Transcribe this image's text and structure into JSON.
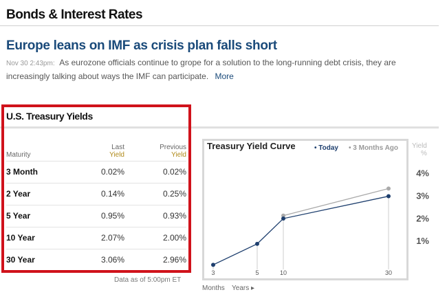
{
  "section": {
    "title": "Bonds & Interest Rates"
  },
  "article": {
    "headline": "Europe leans on IMF as crisis plan falls short",
    "timestamp": "Nov 30 2:43pm:",
    "summary": "As eurozone officials continue to grope for a solution to the long-running debt crisis, they are increasingly talking about ways the IMF can participate.",
    "more_label": "More"
  },
  "yields": {
    "title": "U.S. Treasury Yields",
    "headers": {
      "maturity": "Maturity",
      "last_line1": "Last",
      "last_line2": "Yield",
      "prev_line1": "Previous",
      "prev_line2": "Yield"
    },
    "rows": [
      {
        "maturity": "3 Month",
        "last": "0.02%",
        "previous": "0.02%"
      },
      {
        "maturity": "2 Year",
        "last": "0.14%",
        "previous": "0.25%"
      },
      {
        "maturity": "5 Year",
        "last": "0.95%",
        "previous": "0.93%"
      },
      {
        "maturity": "10 Year",
        "last": "2.07%",
        "previous": "2.00%"
      },
      {
        "maturity": "30 Year",
        "last": "3.06%",
        "previous": "2.96%"
      }
    ],
    "data_note": "Data as of 5:00pm ET"
  },
  "colors": {
    "highlight": "#d0121b",
    "today": "#1e3f6e",
    "ago": "#aaaaaa",
    "headline": "#1a4a7a"
  },
  "chart_data": {
    "type": "line",
    "title": "Treasury Yield Curve",
    "legend": [
      "• Today",
      "• 3 Months Ago"
    ],
    "legend_position": "top-right",
    "ylabel_line1": "Yield",
    "ylabel_line2": "%",
    "yticks": [
      "4%",
      "3%",
      "2%",
      "1%"
    ],
    "ytick_values": [
      4,
      3,
      2,
      1
    ],
    "ylim": [
      0,
      4.6
    ],
    "x": [
      3,
      5,
      10,
      30
    ],
    "x_labels": [
      "3",
      "5",
      "10",
      "30"
    ],
    "x_unit_months": "Months",
    "x_unit_years": "Years ▸",
    "series": [
      {
        "name": "Today",
        "values": [
          0.02,
          0.95,
          2.07,
          3.06
        ]
      },
      {
        "name": "3 Months Ago",
        "values": [
          null,
          null,
          2.2,
          3.4
        ]
      }
    ],
    "grid": false
  }
}
